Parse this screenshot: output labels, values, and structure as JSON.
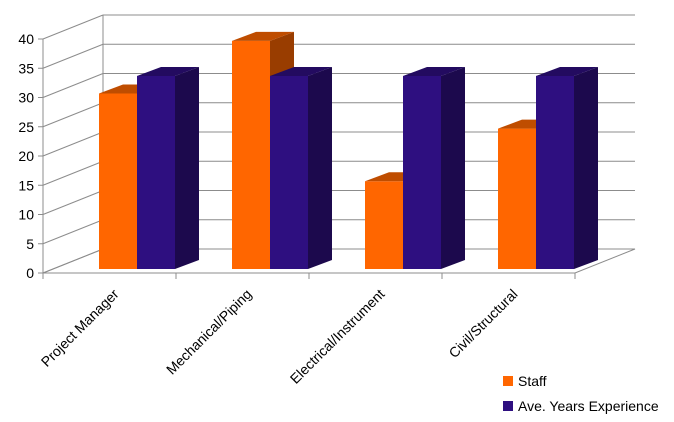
{
  "chart_data": {
    "type": "bar",
    "title": "",
    "xlabel": "",
    "ylabel": "",
    "categories": [
      "Project Manager",
      "Mechanical/Piping",
      "Electrical/Instrument",
      "Civil/Structural"
    ],
    "series": [
      {
        "name": "Staff",
        "values": [
          30,
          39,
          15,
          24
        ],
        "color": "#ff6600"
      },
      {
        "name": "Ave. Years Experience",
        "values": [
          33,
          33,
          33,
          33
        ],
        "color": "#2e0f80"
      }
    ],
    "ylim": [
      0,
      40
    ],
    "yticks": [
      0,
      5,
      10,
      15,
      20,
      25,
      30,
      35,
      40
    ],
    "grid": true,
    "three_d": true,
    "legend_position": "bottom-right"
  }
}
